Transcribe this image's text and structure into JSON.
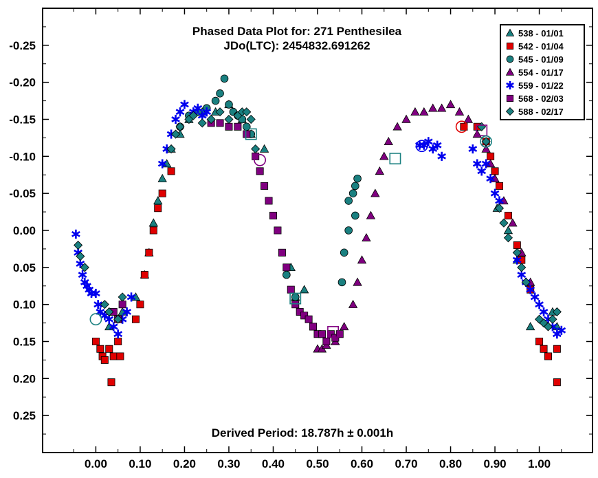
{
  "chart_data": {
    "type": "scatter",
    "title": "Phased Data Plot for: 271 Penthesilea",
    "subtitle": "JDo(LTC): 2454832.691262",
    "annotation": "Derived Period: 18.787h  ± 0.001h",
    "xlim": [
      -0.12,
      1.12
    ],
    "ylim": [
      0.3,
      -0.3
    ],
    "y_inverted": true,
    "x_ticks": [
      0.0,
      0.1,
      0.2,
      0.3,
      0.4,
      0.5,
      0.6,
      0.7,
      0.8,
      0.9,
      1.0
    ],
    "x_tick_labels": [
      "0.00",
      "0.10",
      "0.20",
      "0.30",
      "0.40",
      "0.50",
      "0.60",
      "0.70",
      "0.80",
      "0.90",
      "1.00"
    ],
    "y_ticks": [
      -0.25,
      -0.2,
      -0.15,
      -0.1,
      -0.05,
      0.0,
      0.05,
      0.1,
      0.15,
      0.2,
      0.25
    ],
    "y_tick_labels": [
      "-0.25",
      "-0.20",
      "-0.15",
      "-0.10",
      "-0.05",
      "0.00",
      "0.05",
      "0.10",
      "0.15",
      "0.20",
      "0.25"
    ],
    "legend_position": "top-right",
    "grid": false,
    "series": [
      {
        "name": "538 - 01/01",
        "marker": "triangle",
        "color": "#1a8080",
        "points": [
          [
            0.03,
            0.13
          ],
          [
            0.06,
            0.11
          ],
          [
            0.09,
            0.09
          ],
          [
            0.11,
            0.06
          ],
          [
            0.12,
            0.03
          ],
          [
            0.13,
            -0.01
          ],
          [
            0.14,
            -0.04
          ],
          [
            0.15,
            -0.07
          ],
          [
            0.16,
            -0.09
          ],
          [
            0.17,
            -0.11
          ],
          [
            0.19,
            -0.13
          ],
          [
            0.21,
            -0.15
          ],
          [
            0.24,
            -0.16
          ],
          [
            0.27,
            -0.16
          ],
          [
            0.3,
            -0.17
          ],
          [
            0.33,
            -0.15
          ],
          [
            0.35,
            -0.13
          ],
          [
            0.38,
            -0.11
          ],
          [
            0.44,
            0.05
          ],
          [
            0.45,
            0.09
          ],
          [
            0.47,
            0.08
          ],
          [
            0.98,
            0.13
          ],
          [
            1.03,
            0.11
          ],
          [
            1.04,
            0.13
          ],
          [
            0.905,
            -0.03
          ],
          [
            0.93,
            0.0
          ],
          [
            0.95,
            0.04
          ]
        ]
      },
      {
        "name": "542 - 01/04",
        "marker": "square",
        "color": "#e00000",
        "points": [
          [
            0.0,
            0.15
          ],
          [
            0.01,
            0.16
          ],
          [
            0.015,
            0.17
          ],
          [
            0.02,
            0.175
          ],
          [
            0.03,
            0.16
          ],
          [
            0.04,
            0.17
          ],
          [
            0.05,
            0.15
          ],
          [
            0.055,
            0.17
          ],
          [
            0.035,
            0.205
          ],
          [
            0.09,
            0.12
          ],
          [
            0.1,
            0.1
          ],
          [
            0.11,
            0.06
          ],
          [
            0.12,
            0.03
          ],
          [
            0.13,
            0.0
          ],
          [
            0.14,
            -0.03
          ],
          [
            0.15,
            -0.05
          ],
          [
            0.17,
            -0.08
          ],
          [
            0.83,
            -0.14
          ],
          [
            0.86,
            -0.14
          ],
          [
            0.88,
            -0.12
          ],
          [
            0.89,
            -0.1
          ],
          [
            0.9,
            -0.08
          ],
          [
            0.91,
            -0.06
          ],
          [
            0.93,
            -0.02
          ],
          [
            0.95,
            0.02
          ],
          [
            0.96,
            0.04
          ],
          [
            0.98,
            0.08
          ],
          [
            1.0,
            0.15
          ],
          [
            1.01,
            0.16
          ],
          [
            1.02,
            0.17
          ],
          [
            1.04,
            0.16
          ],
          [
            1.04,
            0.205
          ]
        ]
      },
      {
        "name": "545 - 01/09",
        "marker": "circle",
        "color": "#1a8080",
        "points": [
          [
            0.19,
            -0.14
          ],
          [
            0.21,
            -0.155
          ],
          [
            0.23,
            -0.16
          ],
          [
            0.25,
            -0.165
          ],
          [
            0.27,
            -0.175
          ],
          [
            0.28,
            -0.185
          ],
          [
            0.29,
            -0.205
          ],
          [
            0.3,
            -0.17
          ],
          [
            0.31,
            -0.16
          ],
          [
            0.32,
            -0.155
          ],
          [
            0.33,
            -0.15
          ],
          [
            0.34,
            -0.14
          ],
          [
            0.35,
            -0.13
          ],
          [
            0.57,
            -0.04
          ],
          [
            0.58,
            -0.05
          ],
          [
            0.585,
            -0.06
          ],
          [
            0.59,
            -0.07
          ],
          [
            0.43,
            0.06
          ],
          [
            0.45,
            0.09
          ],
          [
            0.56,
            0.03
          ],
          [
            0.57,
            0.0
          ],
          [
            0.555,
            0.07
          ],
          [
            0.585,
            -0.02
          ]
        ]
      },
      {
        "name": "554 - 01/17",
        "marker": "triangle",
        "color": "#800080",
        "points": [
          [
            0.5,
            0.16
          ],
          [
            0.51,
            0.16
          ],
          [
            0.52,
            0.155
          ],
          [
            0.54,
            0.15
          ],
          [
            0.56,
            0.13
          ],
          [
            0.58,
            0.1
          ],
          [
            0.59,
            0.07
          ],
          [
            0.6,
            0.04
          ],
          [
            0.61,
            0.01
          ],
          [
            0.62,
            -0.02
          ],
          [
            0.63,
            -0.05
          ],
          [
            0.64,
            -0.08
          ],
          [
            0.65,
            -0.1
          ],
          [
            0.66,
            -0.12
          ],
          [
            0.68,
            -0.14
          ],
          [
            0.7,
            -0.15
          ],
          [
            0.72,
            -0.16
          ],
          [
            0.74,
            -0.16
          ],
          [
            0.76,
            -0.165
          ],
          [
            0.78,
            -0.165
          ],
          [
            0.8,
            -0.17
          ],
          [
            0.82,
            -0.16
          ],
          [
            0.84,
            -0.15
          ],
          [
            0.86,
            -0.13
          ],
          [
            0.88,
            -0.11
          ],
          [
            0.89,
            -0.09
          ],
          [
            0.9,
            -0.07
          ],
          [
            0.92,
            -0.04
          ],
          [
            0.94,
            -0.01
          ],
          [
            0.96,
            0.03
          ],
          [
            0.98,
            0.07
          ]
        ]
      },
      {
        "name": "559 - 01/22",
        "marker": "star",
        "color": "#0000ee",
        "points": [
          [
            -0.045,
            0.005
          ],
          [
            -0.04,
            0.03
          ],
          [
            -0.035,
            0.045
          ],
          [
            -0.03,
            0.06
          ],
          [
            -0.025,
            0.07
          ],
          [
            -0.02,
            0.075
          ],
          [
            -0.015,
            0.08
          ],
          [
            -0.01,
            0.085
          ],
          [
            0.0,
            0.085
          ],
          [
            0.005,
            0.1
          ],
          [
            0.01,
            0.11
          ],
          [
            0.02,
            0.115
          ],
          [
            0.03,
            0.12
          ],
          [
            0.04,
            0.13
          ],
          [
            0.05,
            0.14
          ],
          [
            0.06,
            0.12
          ],
          [
            0.07,
            0.11
          ],
          [
            0.08,
            0.09
          ],
          [
            0.15,
            -0.09
          ],
          [
            0.16,
            -0.11
          ],
          [
            0.17,
            -0.13
          ],
          [
            0.18,
            -0.15
          ],
          [
            0.19,
            -0.16
          ],
          [
            0.2,
            -0.17
          ],
          [
            0.22,
            -0.16
          ],
          [
            0.23,
            -0.165
          ],
          [
            0.24,
            -0.155
          ],
          [
            0.25,
            -0.16
          ],
          [
            0.73,
            -0.115
          ],
          [
            0.74,
            -0.115
          ],
          [
            0.75,
            -0.12
          ],
          [
            0.76,
            -0.11
          ],
          [
            0.77,
            -0.115
          ],
          [
            0.78,
            -0.1
          ],
          [
            0.85,
            -0.11
          ],
          [
            0.86,
            -0.09
          ],
          [
            0.87,
            -0.08
          ],
          [
            0.88,
            -0.09
          ],
          [
            0.89,
            -0.07
          ],
          [
            0.9,
            -0.05
          ],
          [
            0.91,
            -0.04
          ],
          [
            0.95,
            0.04
          ],
          [
            0.96,
            0.06
          ],
          [
            0.97,
            0.07
          ],
          [
            0.98,
            0.08
          ],
          [
            0.99,
            0.09
          ],
          [
            1.0,
            0.1
          ],
          [
            1.01,
            0.11
          ],
          [
            1.02,
            0.12
          ],
          [
            1.03,
            0.13
          ],
          [
            1.04,
            0.14
          ],
          [
            1.05,
            0.135
          ]
        ]
      },
      {
        "name": "568 - 02/03",
        "marker": "square",
        "color": "#800080",
        "points": [
          [
            0.04,
            0.11
          ],
          [
            0.05,
            0.12
          ],
          [
            0.06,
            0.1
          ],
          [
            0.26,
            -0.145
          ],
          [
            0.28,
            -0.145
          ],
          [
            0.3,
            -0.14
          ],
          [
            0.32,
            -0.14
          ],
          [
            0.34,
            -0.13
          ],
          [
            0.36,
            -0.1
          ],
          [
            0.37,
            -0.08
          ],
          [
            0.38,
            -0.06
          ],
          [
            0.39,
            -0.04
          ],
          [
            0.4,
            -0.02
          ],
          [
            0.41,
            0.0
          ],
          [
            0.42,
            0.03
          ],
          [
            0.43,
            0.05
          ],
          [
            0.44,
            0.08
          ],
          [
            0.45,
            0.1
          ],
          [
            0.46,
            0.11
          ],
          [
            0.47,
            0.115
          ],
          [
            0.48,
            0.12
          ],
          [
            0.49,
            0.13
          ],
          [
            0.5,
            0.14
          ],
          [
            0.51,
            0.14
          ],
          [
            0.52,
            0.15
          ],
          [
            0.53,
            0.14
          ],
          [
            0.54,
            0.145
          ],
          [
            0.55,
            0.14
          ]
        ]
      },
      {
        "name": "588 - 02/17",
        "marker": "diamond",
        "color": "#1a8080",
        "points": [
          [
            -0.04,
            0.02
          ],
          [
            -0.035,
            0.035
          ],
          [
            -0.025,
            0.05
          ],
          [
            0.02,
            0.1
          ],
          [
            0.03,
            0.11
          ],
          [
            0.05,
            0.12
          ],
          [
            0.06,
            0.09
          ],
          [
            0.17,
            -0.11
          ],
          [
            0.18,
            -0.13
          ],
          [
            0.19,
            -0.14
          ],
          [
            0.21,
            -0.15
          ],
          [
            0.22,
            -0.155
          ],
          [
            0.24,
            -0.145
          ],
          [
            0.26,
            -0.15
          ],
          [
            0.28,
            -0.16
          ],
          [
            0.3,
            -0.15
          ],
          [
            0.32,
            -0.155
          ],
          [
            0.33,
            -0.16
          ],
          [
            0.34,
            -0.16
          ],
          [
            0.35,
            -0.15
          ],
          [
            0.36,
            -0.11
          ],
          [
            0.91,
            -0.03
          ],
          [
            0.92,
            -0.01
          ],
          [
            0.93,
            0.01
          ],
          [
            0.95,
            0.03
          ],
          [
            0.96,
            0.05
          ],
          [
            0.97,
            0.07
          ],
          [
            1.0,
            0.12
          ],
          [
            1.01,
            0.125
          ],
          [
            1.02,
            0.13
          ],
          [
            1.03,
            0.12
          ],
          [
            1.04,
            0.11
          ],
          [
            0.88,
            -0.12
          ],
          [
            0.87,
            -0.14
          ]
        ]
      }
    ],
    "open_markers": [
      {
        "shape": "circle",
        "color": "#1a8080",
        "x": 0.0,
        "y": 0.12
      },
      {
        "shape": "circle",
        "color": "#800080",
        "x": 0.37,
        "y": -0.095
      },
      {
        "shape": "square",
        "color": "#1a8080",
        "x": 0.35,
        "y": -0.13
      },
      {
        "shape": "square",
        "color": "#1a8080",
        "x": 0.45,
        "y": 0.092
      },
      {
        "shape": "square",
        "color": "#800080",
        "x": 0.535,
        "y": 0.137
      },
      {
        "shape": "square",
        "color": "#1a8080",
        "x": 0.675,
        "y": -0.097
      },
      {
        "shape": "circle",
        "color": "#0000ee",
        "x": 0.735,
        "y": -0.114
      },
      {
        "shape": "circle",
        "color": "#e00000",
        "x": 0.825,
        "y": -0.14
      },
      {
        "shape": "square",
        "color": "#800080",
        "x": 0.87,
        "y": -0.135
      },
      {
        "shape": "circle",
        "color": "#1a8080",
        "x": 0.88,
        "y": -0.12
      }
    ]
  }
}
